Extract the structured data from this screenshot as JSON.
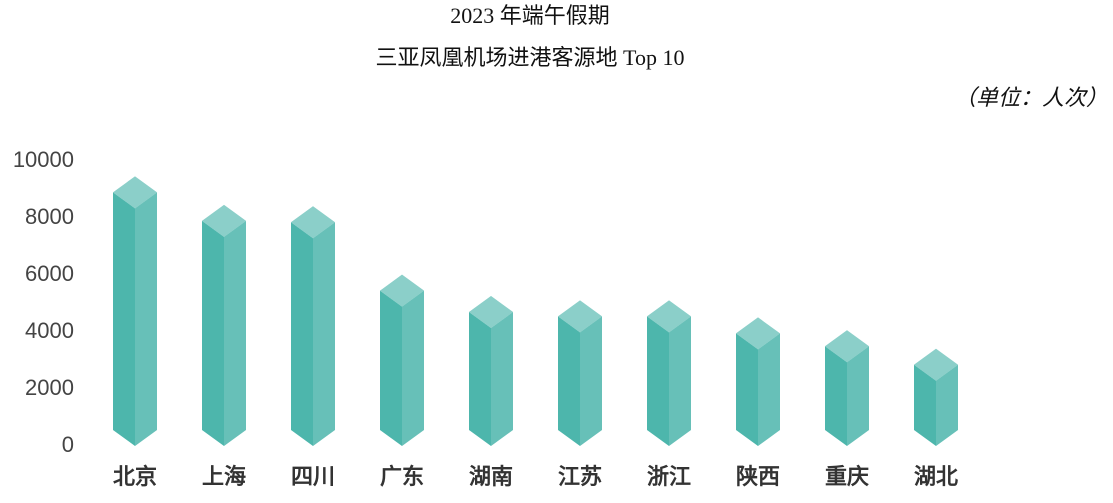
{
  "chart_data": {
    "type": "bar",
    "title": "2023 年端午假期",
    "subtitle": "三亚凤凰机场进港客源地 Top 10",
    "unit_label": "（单位：人次）",
    "categories": [
      "北京",
      "上海",
      "四川",
      "广东",
      "湖南",
      "江苏",
      "浙江",
      "陕西",
      "重庆",
      "湖北"
    ],
    "values": [
      8900,
      7900,
      7850,
      5450,
      4700,
      4550,
      4550,
      3950,
      3500,
      2850
    ],
    "color": "#4db6ac",
    "ylim": [
      0,
      10000
    ],
    "yticks": [
      0,
      2000,
      4000,
      6000,
      8000,
      10000
    ],
    "grid": false
  }
}
